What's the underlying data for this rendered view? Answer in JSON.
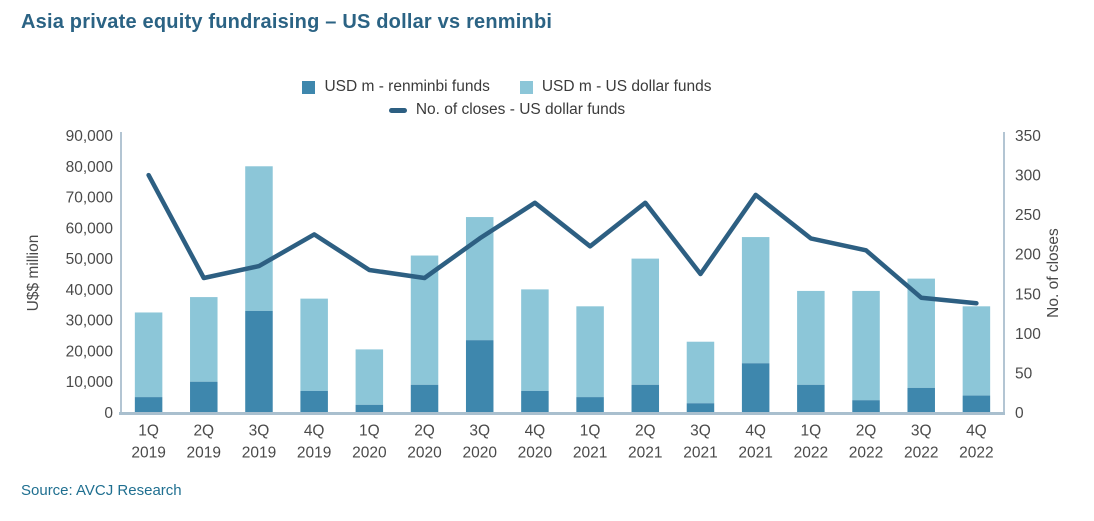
{
  "title": "Asia private equity fundraising – US dollar vs renminbi",
  "source": "Source: AVCJ Research",
  "colors": {
    "title": "#2b6384",
    "source": "#1f6f90",
    "axis_text": "#4a4a4a",
    "axis_line": "#b3c5d3",
    "bottom_axis_line": "#a9bfce",
    "renminbi_bar": "#3e87ad",
    "usd_bar": "#8cc6d8",
    "closes_line": "#2d5f82",
    "background": "#ffffff"
  },
  "legend": {
    "items": [
      {
        "label": "USD m - renminbi funds",
        "marker": "square",
        "color": "#3e87ad"
      },
      {
        "label": "USD m - US dollar funds",
        "marker": "square",
        "color": "#8cc6d8"
      },
      {
        "label": "No. of closes - US dollar funds",
        "marker": "line",
        "color": "#2d5f82"
      }
    ]
  },
  "chart_data": {
    "type": "combo-stacked-bar-line",
    "title": "Asia private equity fundraising – US dollar vs renminbi",
    "categories": [
      "1Q 2019",
      "2Q 2019",
      "3Q 2019",
      "4Q 2019",
      "1Q 2020",
      "2Q 2020",
      "3Q 2020",
      "4Q 2020",
      "1Q 2021",
      "2Q 2021",
      "3Q 2021",
      "4Q 2021",
      "1Q 2022",
      "2Q 2022",
      "3Q 2022",
      "4Q 2022"
    ],
    "series": [
      {
        "name": "USD m - renminbi funds",
        "render": "bar",
        "stack": "fundraising",
        "axis": "left",
        "color": "#3e87ad",
        "values": [
          5000,
          10000,
          33000,
          7000,
          2500,
          9000,
          23500,
          7000,
          5000,
          9000,
          3000,
          16000,
          9000,
          4000,
          8000,
          5500
        ]
      },
      {
        "name": "USD m - US dollar funds",
        "render": "bar",
        "stack": "fundraising",
        "axis": "left",
        "color": "#8cc6d8",
        "values": [
          27500,
          27500,
          47000,
          30000,
          18000,
          42000,
          40000,
          33000,
          29500,
          41000,
          20000,
          41000,
          30500,
          35500,
          35500,
          29000
        ]
      },
      {
        "name": "No. of closes - US dollar funds",
        "render": "line",
        "axis": "right",
        "color": "#2d5f82",
        "values": [
          300,
          170,
          185,
          225,
          180,
          170,
          220,
          265,
          210,
          265,
          175,
          275,
          220,
          205,
          145,
          138
        ]
      }
    ],
    "left_axis": {
      "title": "U$$ million",
      "min": 0,
      "max": 90000,
      "step": 10000,
      "tick_labels": [
        "0",
        "10,000",
        "20,000",
        "30,000",
        "40,000",
        "50,000",
        "60,000",
        "70,000",
        "80,000",
        "90,000"
      ]
    },
    "right_axis": {
      "title": "No. of closes",
      "min": 0,
      "max": 350,
      "step": 50,
      "tick_labels": [
        "0",
        "50",
        "100",
        "150",
        "200",
        "250",
        "300",
        "350"
      ]
    },
    "grid": false,
    "legend_position": "top-center"
  }
}
